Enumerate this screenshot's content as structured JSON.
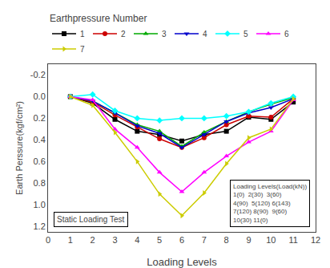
{
  "chart_data": {
    "type": "line",
    "xlabel": "Loading Levels",
    "ylabel": "Earth Perssure(kgf/cm²)",
    "x": [
      1,
      2,
      3,
      4,
      5,
      6,
      7,
      8,
      9,
      10,
      11
    ],
    "xlim": [
      0,
      12
    ],
    "xticks": [
      0,
      1,
      2,
      3,
      4,
      5,
      6,
      7,
      8,
      9,
      10,
      11,
      12
    ],
    "ylim": [
      1.25,
      -0.3
    ],
    "yticks": [
      -0.2,
      {
        "value": 0,
        "label": "0.0"
      },
      0.2,
      0.4,
      0.6,
      0.8,
      {
        "value": 1,
        "label": "1.0"
      },
      1.2
    ],
    "grid": false,
    "legend": "top",
    "legend_title": "Earthpressure Number",
    "series": [
      {
        "name": "1",
        "color": "black",
        "marker": "square",
        "values": [
          0.0,
          0.06,
          0.21,
          0.32,
          0.35,
          0.41,
          0.35,
          0.32,
          0.19,
          0.21,
          0.05
        ]
      },
      {
        "name": "2",
        "color": "#cc0000",
        "marker": "circle",
        "values": [
          0.0,
          0.05,
          0.17,
          0.28,
          0.39,
          0.47,
          0.38,
          0.26,
          0.18,
          0.19,
          0.02
        ]
      },
      {
        "name": "3",
        "color": "#00aa00",
        "marker": "triangle-up",
        "values": [
          0.0,
          0.04,
          0.15,
          0.26,
          0.32,
          0.46,
          0.33,
          0.23,
          0.14,
          0.07,
          0.01
        ]
      },
      {
        "name": "4",
        "color": "#0000cc",
        "marker": "triangle-down",
        "values": [
          0.0,
          0.04,
          0.15,
          0.27,
          0.34,
          0.47,
          0.35,
          0.23,
          0.15,
          0.1,
          0.02
        ]
      },
      {
        "name": "5",
        "color": "cyan",
        "marker": "diamond",
        "values": [
          0.0,
          -0.02,
          0.13,
          0.2,
          0.22,
          0.2,
          0.2,
          0.18,
          0.14,
          0.06,
          0.0
        ]
      },
      {
        "name": "6",
        "color": "magenta",
        "marker": "triangle-up",
        "values": [
          0.0,
          0.03,
          0.3,
          0.47,
          0.7,
          0.88,
          0.7,
          0.55,
          0.42,
          0.32,
          0.03
        ]
      },
      {
        "name": "7",
        "color": "#cccc00",
        "marker": "triangle-right",
        "values": [
          0.0,
          0.08,
          0.33,
          0.6,
          0.9,
          1.1,
          0.89,
          0.62,
          0.38,
          0.3,
          0.02
        ]
      }
    ],
    "annotations": [
      "Static Loading Test",
      "Loading Levels(Load(kN))\n1(0)  2(30)  3(60)\n4(90)  5(120) 6(143)\n7(120) 8(90)  9(60)\n10(30) 11(0)"
    ]
  }
}
